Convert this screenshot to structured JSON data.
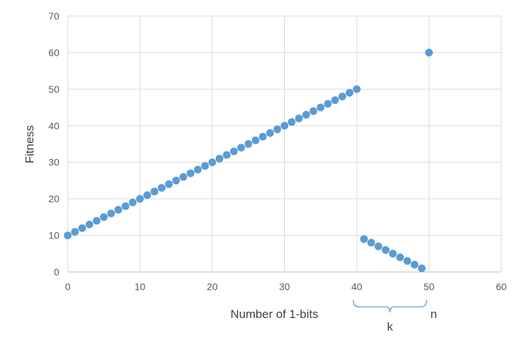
{
  "chart_data": {
    "type": "scatter",
    "xlabel": "Number of 1-bits",
    "ylabel": "Fitness",
    "xlim": [
      0,
      60
    ],
    "ylim": [
      0,
      70
    ],
    "x_ticks": [
      "0",
      "10",
      "20",
      "30",
      "40",
      "50",
      "60"
    ],
    "y_ticks": [
      "0",
      "10",
      "20",
      "30",
      "40",
      "50",
      "60",
      "70"
    ],
    "grid": true,
    "legend": "none",
    "series": [
      {
        "x": [
          0,
          1,
          2,
          3,
          4,
          5,
          6,
          7,
          8,
          9,
          10,
          11,
          12,
          13,
          14,
          15,
          16,
          17,
          18,
          19,
          20,
          21,
          22,
          23,
          24,
          25,
          26,
          27,
          28,
          29,
          30,
          31,
          32,
          33,
          34,
          35,
          36,
          37,
          38,
          39,
          40,
          41,
          42,
          43,
          44,
          45,
          46,
          47,
          48,
          49,
          50
        ],
        "y": [
          10,
          11,
          12,
          13,
          14,
          15,
          16,
          17,
          18,
          19,
          20,
          21,
          22,
          23,
          24,
          25,
          26,
          27,
          28,
          29,
          30,
          31,
          32,
          33,
          34,
          35,
          36,
          37,
          38,
          39,
          40,
          41,
          42,
          43,
          44,
          45,
          46,
          47,
          48,
          49,
          50,
          9,
          8,
          7,
          6,
          5,
          4,
          3,
          2,
          1,
          60
        ]
      }
    ],
    "colors": {
      "point": "#5b9bd5",
      "grid": "#d9d9d9",
      "bracket": "#5b9bd5"
    },
    "annotations": [
      {
        "text": "k",
        "x_range": [
          40,
          49
        ]
      },
      {
        "text": "n",
        "x": 50
      }
    ]
  }
}
